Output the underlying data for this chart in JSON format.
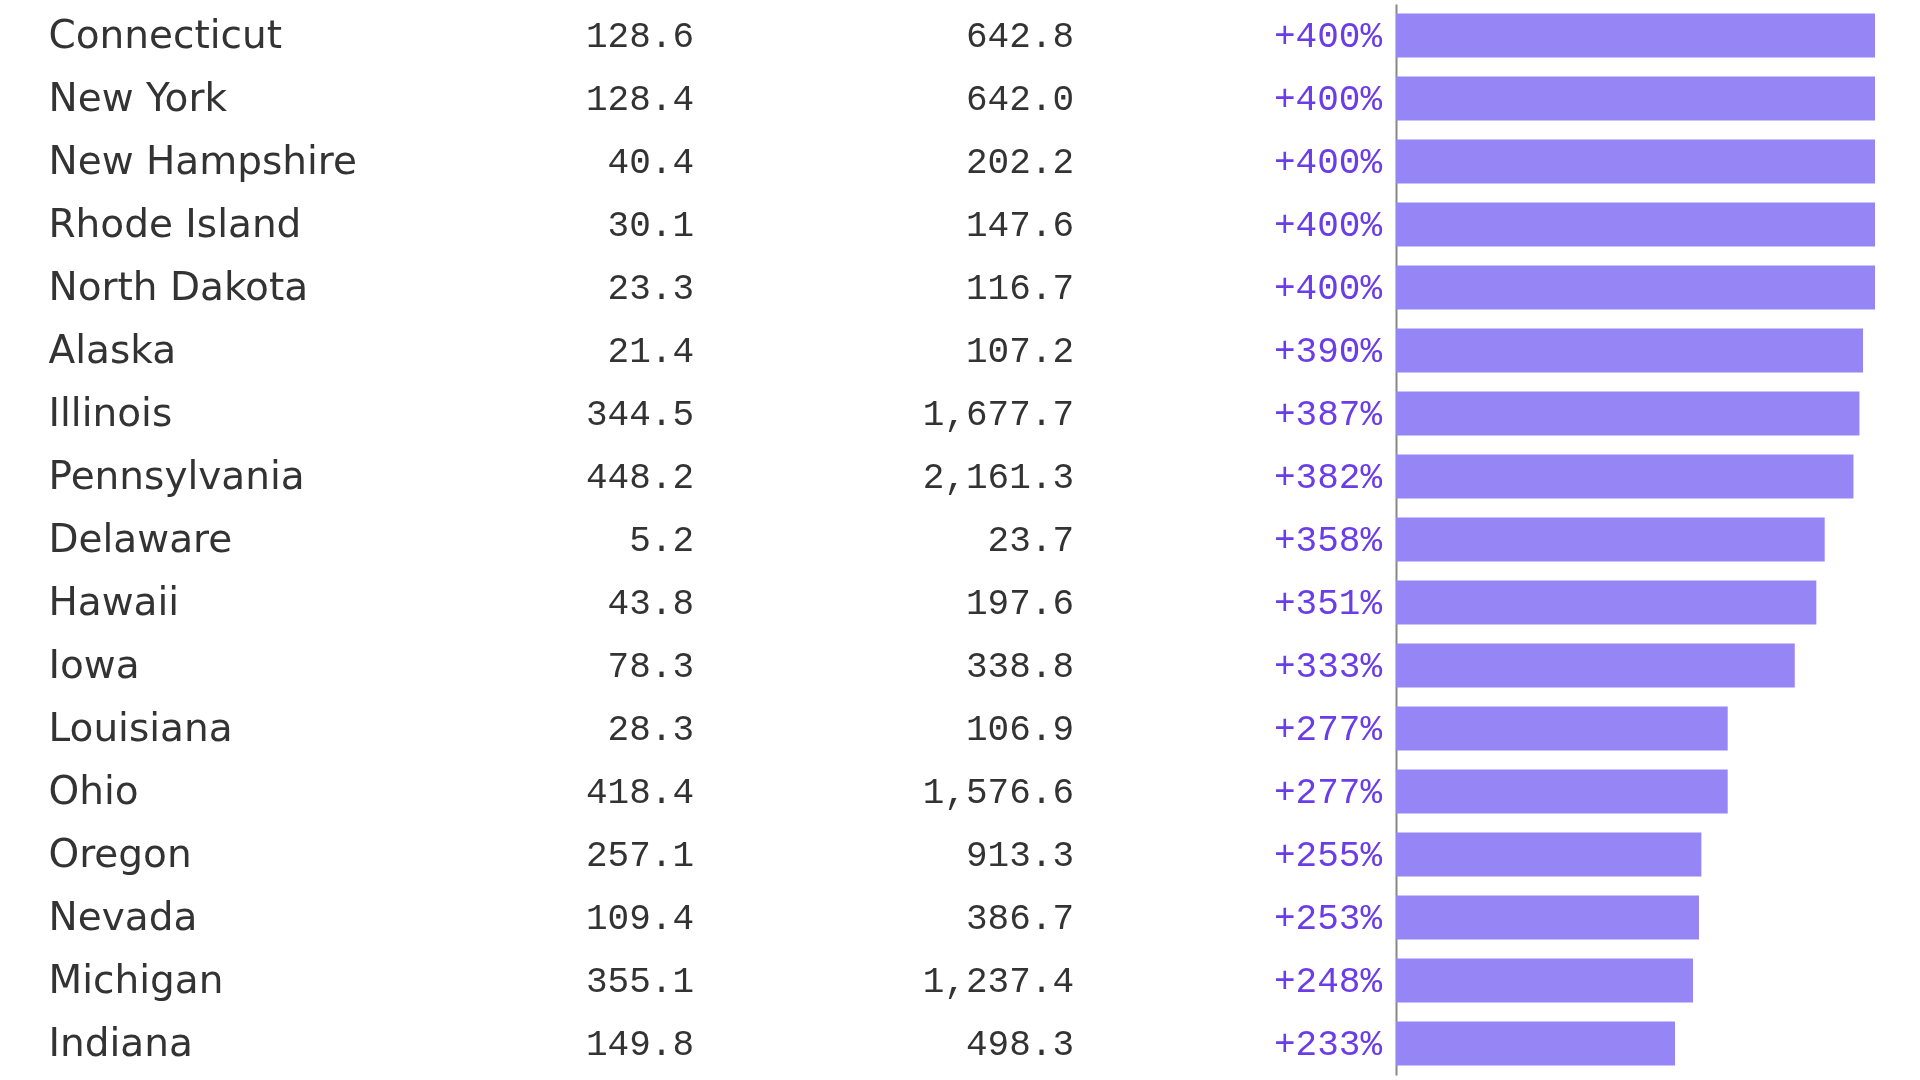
{
  "chart_data": {
    "type": "bar",
    "orientation": "horizontal",
    "categories": [
      "Connecticut",
      "New York",
      "New Hampshire",
      "Rhode Island",
      "North Dakota",
      "Alaska",
      "Illinois",
      "Pennsylvania",
      "Delaware",
      "Hawaii",
      "Iowa",
      "Louisiana",
      "Ohio",
      "Oregon",
      "Nevada",
      "Michigan",
      "Indiana"
    ],
    "values": [
      400,
      400,
      400,
      400,
      400,
      390,
      387,
      382,
      358,
      351,
      333,
      277,
      277,
      255,
      253,
      248,
      233
    ],
    "value_labels": [
      "+400%",
      "+400%",
      "+400%",
      "+400%",
      "+400%",
      "+390%",
      "+387%",
      "+382%",
      "+358%",
      "+351%",
      "+333%",
      "+277%",
      "+277%",
      "+255%",
      "+253%",
      "+248%",
      "+233%"
    ],
    "color": "#9685f5",
    "annotations": [
      "128.6",
      "642.8",
      "128.4",
      "642.0",
      "40.4",
      "202.2",
      "30.1",
      "147.6",
      "23.3",
      "116.7",
      "21.4",
      "107.2",
      "344.5",
      "1,677.7",
      "448.2",
      "2,161.3",
      "5.2",
      "23.7",
      "43.8",
      "197.6",
      "78.3",
      "338.8",
      "28.3",
      "106.9",
      "418.4",
      "1,576.6",
      "257.1",
      "913.3",
      "109.4",
      "386.7",
      "355.1",
      "1,237.4",
      "149.8",
      "498.3"
    ]
  }
}
